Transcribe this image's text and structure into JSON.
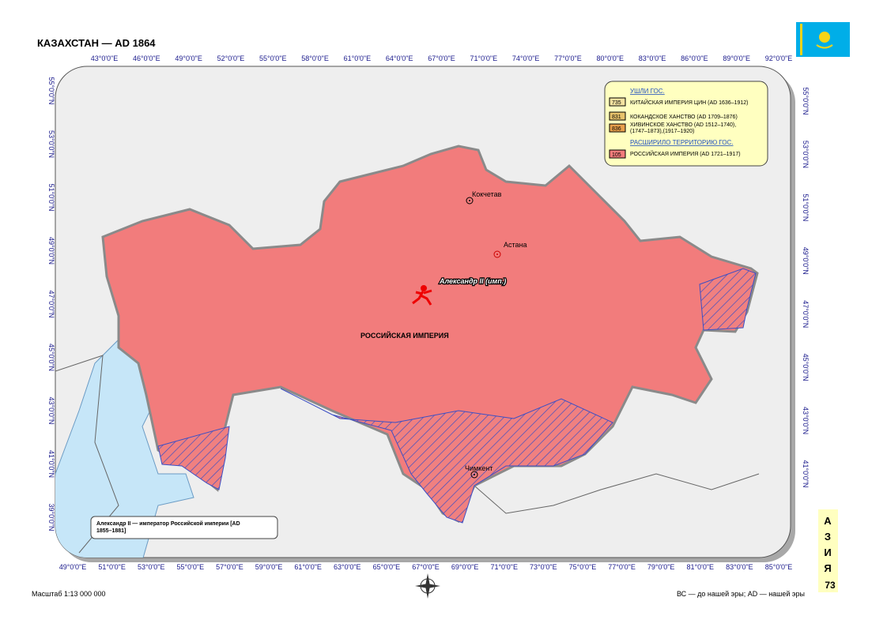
{
  "header": {
    "title": "КАЗАХСТАН — AD 1864"
  },
  "axes": {
    "top": [
      "43°0'0\"E",
      "46°0'0\"E",
      "49°0'0\"E",
      "52°0'0\"E",
      "55°0'0\"E",
      "58°0'0\"E",
      "61°0'0\"E",
      "64°0'0\"E",
      "67°0'0\"E",
      "71°0'0\"E",
      "74°0'0\"E",
      "77°0'0\"E",
      "80°0'0\"E",
      "83°0'0\"E",
      "86°0'0\"E",
      "89°0'0\"E",
      "92°0'0\"E"
    ],
    "bottom": [
      "49°0'0\"E",
      "51°0'0\"E",
      "53°0'0\"E",
      "55°0'0\"E",
      "57°0'0\"E",
      "59°0'0\"E",
      "61°0'0\"E",
      "63°0'0\"E",
      "65°0'0\"E",
      "67°0'0\"E",
      "69°0'0\"E",
      "71°0'0\"E",
      "73°0'0\"E",
      "75°0'0\"E",
      "77°0'0\"E",
      "79°0'0\"E",
      "81°0'0\"E",
      "83°0'0\"E",
      "85°0'0\"E"
    ],
    "left": [
      "55°0'0\"N",
      "53°0'0\"N",
      "51°0'0\"N",
      "49°0'0\"N",
      "47°0'0\"N",
      "45°0'0\"N",
      "43°0'0\"N",
      "41°0'0\"N",
      "39°0'0\"N"
    ],
    "right": [
      "55°0'0\"N",
      "53°0'0\"N",
      "51°0'0\"N",
      "49°0'0\"N",
      "47°0'0\"N",
      "45°0'0\"N",
      "43°0'0\"N",
      "41°0'0\"N"
    ]
  },
  "legend": {
    "lost_heading": "УШЛИ ГОС.",
    "lost": [
      {
        "code": "735",
        "label": "КИТАЙСКАЯ ИМПЕРИЯ ЦИН (AD 1636–1912)"
      },
      {
        "code": "831",
        "label": "КОКАНДСКОЕ ХАНСТВО (AD 1709–1876)"
      },
      {
        "code": "836",
        "label": "ХИВИНСКОЕ ХАНСТВО (AD 1512–1740),",
        "label2": "(1747–1873),(1917–1920)"
      }
    ],
    "gained_heading": "РАСШИРИЛО ТЕРРИТОРИЮ ГОС.",
    "gained": [
      {
        "code": "105",
        "label": "РОССИЙСКАЯ ИМПЕРИЯ (AD 1721–1917)"
      }
    ]
  },
  "map": {
    "cities": [
      "Кокчетав",
      "Астана",
      "Чимкент"
    ],
    "ruler": "Александр II (имп.)",
    "state": "РОССИЙСКАЯ ИМПЕРИЯ",
    "note": "Александр II — император Российской империи [AD",
    "note2": "1855–1881]"
  },
  "footer": {
    "scale": "Масштаб 1:13 000 000",
    "era": "ВС — до нашей эры; AD — нашей эры"
  },
  "side_tab": {
    "letters": [
      "А",
      "З",
      "И",
      "Я"
    ],
    "page": "73"
  }
}
